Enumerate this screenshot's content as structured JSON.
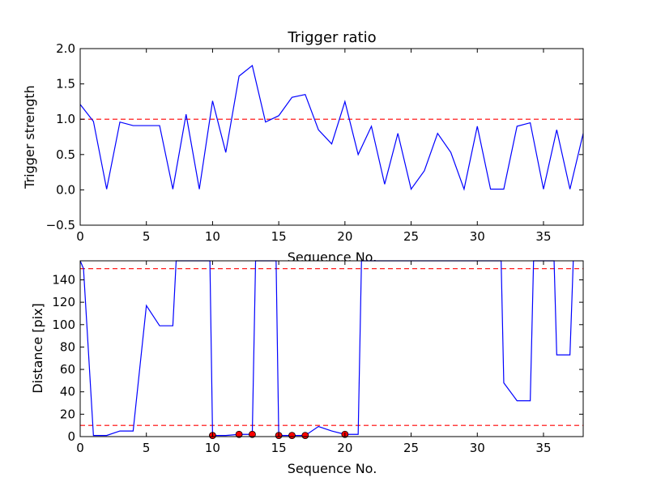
{
  "chart_data": [
    {
      "type": "line",
      "title": "Trigger ratio",
      "xlabel": "Sequence No.",
      "ylabel": "Trigger strength",
      "xlim": [
        0,
        38
      ],
      "ylim": [
        -0.5,
        2.0
      ],
      "xticks": [
        0,
        5,
        10,
        15,
        20,
        25,
        30,
        35
      ],
      "yticks": [
        -0.5,
        0.0,
        0.5,
        1.0,
        1.5,
        2.0
      ],
      "ytick_labels": [
        "−0.5",
        "0.0",
        "0.5",
        "1.0",
        "1.5",
        "2.0"
      ],
      "threshold_lines": [
        1.0
      ],
      "line_color": "#0000ff",
      "threshold_color": "#ff0000",
      "series": [
        {
          "x": [
            0,
            1,
            2,
            3,
            4,
            5,
            6,
            7,
            8,
            9,
            10,
            11,
            12,
            13,
            14,
            15,
            16,
            17,
            18,
            19,
            20,
            21,
            22,
            23,
            24,
            25,
            26,
            27,
            28,
            29,
            30,
            31,
            32,
            33,
            34,
            35,
            36,
            37,
            38
          ],
          "values": [
            1.21,
            0.97,
            0.01,
            0.96,
            0.91,
            0.91,
            0.91,
            0.01,
            1.07,
            0.01,
            1.26,
            0.53,
            1.61,
            1.76,
            0.96,
            1.05,
            1.31,
            1.35,
            0.85,
            0.65,
            1.25,
            0.5,
            0.9,
            0.08,
            0.8,
            0.01,
            0.27,
            0.8,
            0.53,
            0.01,
            0.9,
            0.01,
            0.01,
            0.9,
            0.95,
            0.01,
            0.85,
            0.01,
            0.8
          ]
        }
      ]
    },
    {
      "type": "line",
      "title": "",
      "xlabel": "Sequence No.",
      "ylabel": "Distance [pix]",
      "xlim": [
        0,
        38
      ],
      "ylim": [
        0,
        157
      ],
      "xticks": [
        0,
        5,
        10,
        15,
        20,
        25,
        30,
        35
      ],
      "yticks": [
        0,
        20,
        40,
        60,
        80,
        100,
        120,
        140
      ],
      "threshold_lines": [
        10,
        150
      ],
      "line_color": "#0000ff",
      "threshold_color": "#ff0000",
      "marker_color": "#ff0000",
      "series": [
        {
          "x": [
            0,
            0.25,
            1,
            2,
            3,
            4,
            5,
            6,
            7,
            7.25,
            9.8,
            10,
            11,
            12,
            13,
            13.25,
            14.8,
            15,
            16,
            17,
            18,
            19,
            20,
            21,
            21.25,
            31.8,
            32,
            33,
            34,
            34.25,
            35.8,
            36,
            37,
            37.25
          ],
          "values": [
            157,
            150,
            1,
            1,
            5,
            5,
            117,
            99,
            99,
            157,
            157,
            1,
            1,
            2,
            2,
            157,
            157,
            1,
            1,
            1,
            9,
            5,
            2,
            2,
            157,
            157,
            48,
            32,
            32,
            157,
            157,
            73,
            73,
            157
          ]
        }
      ],
      "markers": {
        "x": [
          10,
          12,
          13,
          15,
          16,
          17,
          20
        ],
        "values": [
          1,
          2,
          2,
          1,
          1,
          1,
          2
        ]
      }
    }
  ]
}
